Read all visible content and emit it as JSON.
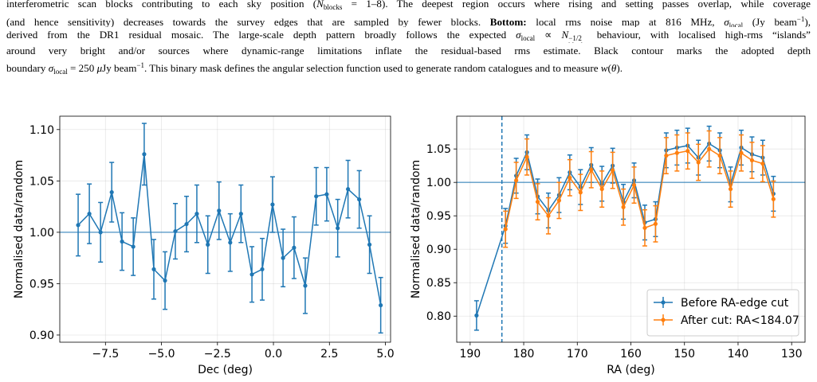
{
  "caption": {
    "lines": [
      [
        "interferometric scan blocks contributing to each sky position (",
        "N",
        "blocks",
        " = 1–8). The deepest region occurs where rising and setting passes overlap, while coverage"
      ],
      [
        "(and hence sensitivity) decreases towards the survey edges that are sampled by fewer blocks. ",
        "Bottom:",
        " local rms noise map at 816 MHz, ",
        "σ",
        "local",
        " (Jy beam",
        "−1",
        "),"
      ],
      [
        "derived from the DR1 residual mosaic. The large-scale depth pattern broadly follows the expected ",
        "σ",
        "local",
        " ∝ ",
        "N",
        "−1/2",
        "blocks",
        " behaviour, with localised high-rms “islands”"
      ],
      [
        "around very bright and/or sources where dynamic-range limitations inflate the residual-based rms estimate. Black contour marks the adopted depth"
      ],
      [
        "boundary ",
        "σ",
        "local",
        " = 250 ",
        "μ",
        "Jy beam",
        "−1",
        ". This binary mask defines the angular selection function used to generate random catalogues and to measure ",
        "w",
        "(",
        "θ",
        ")."
      ]
    ]
  },
  "chart_data": [
    {
      "type": "line",
      "xlabel": "Dec (deg)",
      "ylabel": "Normalised data/random",
      "grid": true,
      "hline": 1,
      "xlim": [
        -9.54,
        5.23
      ],
      "ylim": [
        0.893,
        1.113
      ],
      "xticks": [
        {
          "value": -7.5,
          "label": "−7.5"
        },
        {
          "value": -5,
          "label": "−5.0"
        },
        {
          "value": -2.5,
          "label": "−2.5"
        },
        {
          "value": 0,
          "label": "0.0"
        },
        {
          "value": 2.5,
          "label": "2.5"
        },
        {
          "value": 5,
          "label": "5.0"
        }
      ],
      "yticks": [
        {
          "value": 0.9,
          "label": "0.90"
        },
        {
          "value": 0.95,
          "label": "0.95"
        },
        {
          "value": 1,
          "label": "1.00"
        },
        {
          "value": 1.05,
          "label": "1.05"
        },
        {
          "value": 1.1,
          "label": "1.10"
        }
      ],
      "series": [
        {
          "color": "#1f77b4",
          "x": [
            -8.72,
            -8.22,
            -7.72,
            -7.22,
            -6.76,
            -6.26,
            -5.77,
            -5.34,
            -4.84,
            -4.38,
            -3.88,
            -3.42,
            -2.93,
            -2.43,
            -1.93,
            -1.45,
            -0.96,
            -0.5,
            -0.04,
            0.43,
            0.92,
            1.42,
            1.91,
            2.38,
            2.87,
            3.33,
            3.83,
            4.29,
            4.79
          ],
          "values": [
            1.007,
            1.018,
            1.0,
            1.039,
            0.991,
            0.986,
            1.076,
            0.964,
            0.953,
            1.001,
            1.008,
            1.018,
            0.988,
            1.021,
            0.99,
            1.018,
            0.959,
            0.964,
            1.027,
            0.975,
            0.985,
            0.948,
            1.035,
            1.037,
            1.004,
            1.042,
            1.032,
            0.988,
            0.929
          ],
          "errors": [
            0.03,
            0.029,
            0.029,
            0.029,
            0.028,
            0.028,
            0.03,
            0.029,
            0.028,
            0.027,
            0.027,
            0.028,
            0.028,
            0.028,
            0.028,
            0.028,
            0.027,
            0.03,
            0.027,
            0.028,
            0.03,
            0.027,
            0.028,
            0.026,
            0.028,
            0.028,
            0.028,
            0.028,
            0.027
          ]
        }
      ]
    },
    {
      "type": "line",
      "xlabel": "RA (deg)",
      "ylabel": "Normalised data/random",
      "grid": true,
      "hline": 1,
      "vline": 184.07,
      "legend": "lower right",
      "xlim": [
        192.5,
        127.5
      ],
      "ylim": [
        0.761,
        1.099
      ],
      "xticks": [
        190,
        180,
        170,
        160,
        150,
        140,
        130
      ],
      "yticks": [
        {
          "value": 0.8,
          "label": "0.80"
        },
        {
          "value": 0.85,
          "label": "0.85"
        },
        {
          "value": 0.9,
          "label": "0.90"
        },
        {
          "value": 0.95,
          "label": "0.95"
        },
        {
          "value": 1,
          "label": "1.00"
        },
        {
          "value": 1.05,
          "label": "1.05"
        }
      ],
      "series": [
        {
          "name": "Before RA-edge cut",
          "color": "#1f77b4",
          "x": [
            188.8,
            183.4,
            181.4,
            179.4,
            177.4,
            175.4,
            173.4,
            171.4,
            169.4,
            167.4,
            165.4,
            163.4,
            161.4,
            159.4,
            157.4,
            155.4,
            153.4,
            151.4,
            149.4,
            147.4,
            145.4,
            143.4,
            141.4,
            139.4,
            137.4,
            135.4,
            133.4
          ],
          "values": [
            0.801,
            0.935,
            1.01,
            1.045,
            0.979,
            0.958,
            0.981,
            1.015,
            0.993,
            1.026,
            0.998,
            1.025,
            0.971,
            1.003,
            0.94,
            0.945,
            1.048,
            1.052,
            1.055,
            1.037,
            1.058,
            1.048,
            0.997,
            1.052,
            1.042,
            1.037,
            0.983
          ],
          "errors": [
            0.022,
            0.026,
            0.026,
            0.026,
            0.026,
            0.026,
            0.026,
            0.026,
            0.026,
            0.026,
            0.026,
            0.026,
            0.026,
            0.026,
            0.026,
            0.026,
            0.026,
            0.026,
            0.026,
            0.026,
            0.026,
            0.026,
            0.026,
            0.026,
            0.026,
            0.026,
            0.026
          ]
        },
        {
          "name": "After cut: RA<184.07",
          "color": "#ff7f0e",
          "x": [
            183.4,
            181.4,
            179.4,
            177.4,
            175.4,
            173.4,
            171.4,
            169.4,
            167.4,
            165.4,
            163.4,
            161.4,
            159.4,
            157.4,
            155.4,
            153.4,
            151.4,
            149.4,
            147.4,
            145.4,
            143.4,
            141.4,
            139.4,
            137.4,
            135.4,
            133.4
          ],
          "values": [
            0.93,
            1.003,
            1.038,
            0.971,
            0.95,
            0.973,
            1.007,
            0.985,
            1.019,
            0.99,
            1.018,
            0.963,
            0.996,
            0.932,
            0.938,
            1.04,
            1.044,
            1.047,
            1.03,
            1.05,
            1.04,
            0.99,
            1.044,
            1.033,
            1.028,
            0.975
          ],
          "errors": [
            0.027,
            0.027,
            0.027,
            0.027,
            0.027,
            0.027,
            0.027,
            0.027,
            0.027,
            0.027,
            0.027,
            0.027,
            0.027,
            0.027,
            0.027,
            0.027,
            0.027,
            0.027,
            0.027,
            0.027,
            0.027,
            0.027,
            0.027,
            0.027,
            0.027,
            0.027
          ]
        }
      ]
    }
  ]
}
